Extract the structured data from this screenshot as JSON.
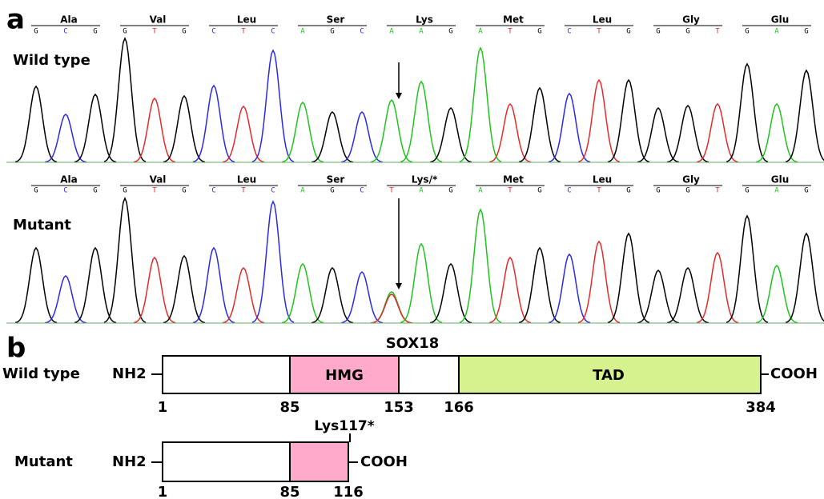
{
  "panel_a": {
    "label": "a",
    "tracks": [
      {
        "label": "Wild type",
        "codons": [
          {
            "aa": "Ala",
            "bases": [
              "G",
              "C",
              "G"
            ]
          },
          {
            "aa": "Val",
            "bases": [
              "G",
              "T",
              "G"
            ]
          },
          {
            "aa": "Leu",
            "bases": [
              "C",
              "T",
              "C"
            ]
          },
          {
            "aa": "Ser",
            "bases": [
              "A",
              "G",
              "C"
            ]
          },
          {
            "aa": "Lys",
            "bases": [
              "A",
              "A",
              "G"
            ]
          },
          {
            "aa": "Met",
            "bases": [
              "A",
              "T",
              "G"
            ]
          },
          {
            "aa": "Leu",
            "bases": [
              "C",
              "T",
              "G"
            ]
          },
          {
            "aa": "Gly",
            "bases": [
              "G",
              "G",
              "T"
            ]
          },
          {
            "aa": "Glu",
            "bases": [
              "G",
              "A",
              "G"
            ]
          }
        ]
      },
      {
        "label": "Mutant",
        "codons": [
          {
            "aa": "Ala",
            "bases": [
              "G",
              "C",
              "G"
            ]
          },
          {
            "aa": "Val",
            "bases": [
              "G",
              "T",
              "G"
            ]
          },
          {
            "aa": "Leu",
            "bases": [
              "C",
              "T",
              "C"
            ]
          },
          {
            "aa": "Ser",
            "bases": [
              "A",
              "G",
              "C"
            ]
          },
          {
            "aa": "Lys/*",
            "bases": [
              "T",
              "A",
              "G"
            ]
          },
          {
            "aa": "Met",
            "bases": [
              "A",
              "T",
              "G"
            ]
          },
          {
            "aa": "Leu",
            "bases": [
              "C",
              "T",
              "G"
            ]
          },
          {
            "aa": "Gly",
            "bases": [
              "G",
              "G",
              "T"
            ]
          },
          {
            "aa": "Glu",
            "bases": [
              "G",
              "A",
              "G"
            ]
          }
        ]
      }
    ]
  },
  "panel_b": {
    "label": "b",
    "title": "SOX18",
    "wild_type": {
      "label": "Wild type",
      "n_term": "NH2",
      "c_term": "COOH",
      "domains": [
        "HMG",
        "TAD"
      ],
      "positions": [
        "1",
        "85",
        "153",
        "166",
        "384"
      ]
    },
    "mutant": {
      "label": "Mutant",
      "n_term": "NH2",
      "c_term": "COOH",
      "mutation": "Lys117*",
      "positions": [
        "1",
        "85",
        "116"
      ]
    }
  }
}
